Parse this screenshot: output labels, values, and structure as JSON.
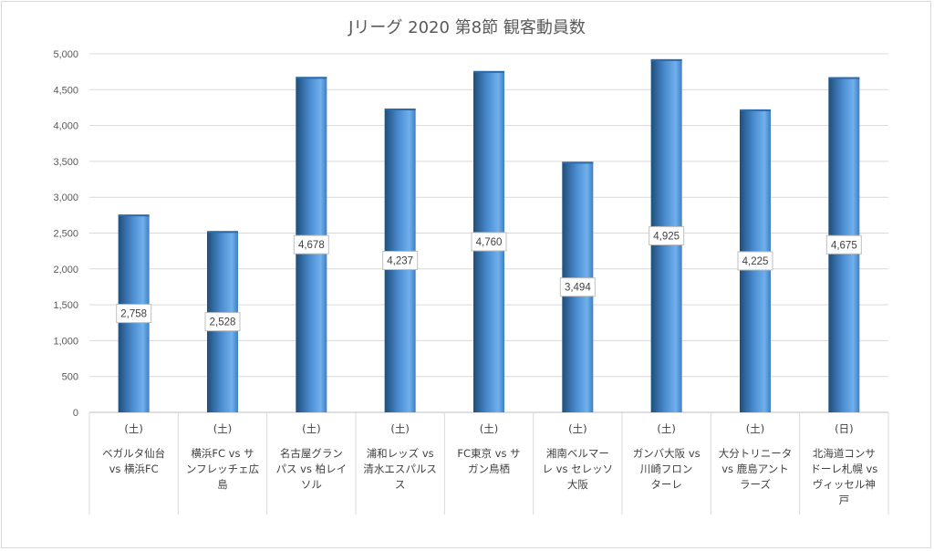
{
  "chart_data": {
    "type": "bar",
    "title": "Jリーグ 2020 第8節 観客動員数",
    "xlabel": "",
    "ylabel": "",
    "ylim": [
      0,
      5000
    ],
    "ytick_step": 500,
    "ytick_labels": [
      "0",
      "500",
      "1,000",
      "1,500",
      "2,000",
      "2,500",
      "3,000",
      "3,500",
      "4,000",
      "4,500",
      "5,000"
    ],
    "grid": true,
    "legend": "none",
    "categories": [
      {
        "day": "(土)",
        "lines": [
          "ベガルタ仙台",
          "vs 横浜FC"
        ]
      },
      {
        "day": "(土)",
        "lines": [
          "横浜FC vs サ",
          "ンフレッチェ広",
          "島"
        ]
      },
      {
        "day": "(土)",
        "lines": [
          "名古屋グラン",
          "パス vs 柏レイ",
          "ソル"
        ]
      },
      {
        "day": "(土)",
        "lines": [
          "浦和レッズ vs",
          "清水エスパルス",
          "ス"
        ]
      },
      {
        "day": "(土)",
        "lines": [
          "FC東京 vs サ",
          "ガン鳥栖"
        ]
      },
      {
        "day": "(土)",
        "lines": [
          "湘南ベルマー",
          "レ vs セレッソ",
          "大阪"
        ]
      },
      {
        "day": "(土)",
        "lines": [
          "ガンバ大阪 vs",
          "川崎フロン",
          "ターレ"
        ]
      },
      {
        "day": "(土)",
        "lines": [
          "大分トリニータ",
          "vs 鹿島アント",
          "ラーズ"
        ]
      },
      {
        "day": "(日)",
        "lines": [
          "北海道コンサ",
          "ドーレ札幌 vs",
          "ヴィッセル神",
          "戸"
        ]
      }
    ],
    "values": [
      2758,
      2528,
      4678,
      4237,
      4760,
      3494,
      4925,
      4225,
      4675
    ],
    "data_labels": [
      "2,758",
      "2,528",
      "4,678",
      "4,237",
      "4,760",
      "3,494",
      "4,925",
      "4,225",
      "4,675"
    ],
    "bar_color": "#5b9bd5"
  }
}
